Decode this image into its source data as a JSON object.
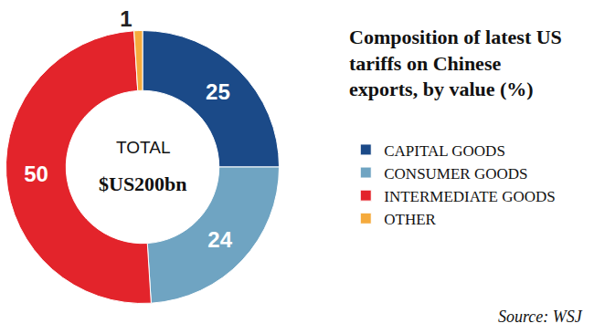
{
  "chart_data": {
    "type": "pie",
    "title": "Composition of latest US tariffs on Chinese exports, by value (%)",
    "categories": [
      "CAPITAL GOODS",
      "CONSUMER GOODS",
      "INTERMEDIATE GOODS",
      "OTHER"
    ],
    "values": [
      25,
      24,
      50,
      1
    ],
    "colors": [
      "#1b4a88",
      "#6fa4c2",
      "#e3242b",
      "#f5aa3c"
    ],
    "center_text": [
      "TOTAL",
      "$US200bn"
    ],
    "source": "Source: WSJ",
    "data_labels": true,
    "legend": "right"
  }
}
